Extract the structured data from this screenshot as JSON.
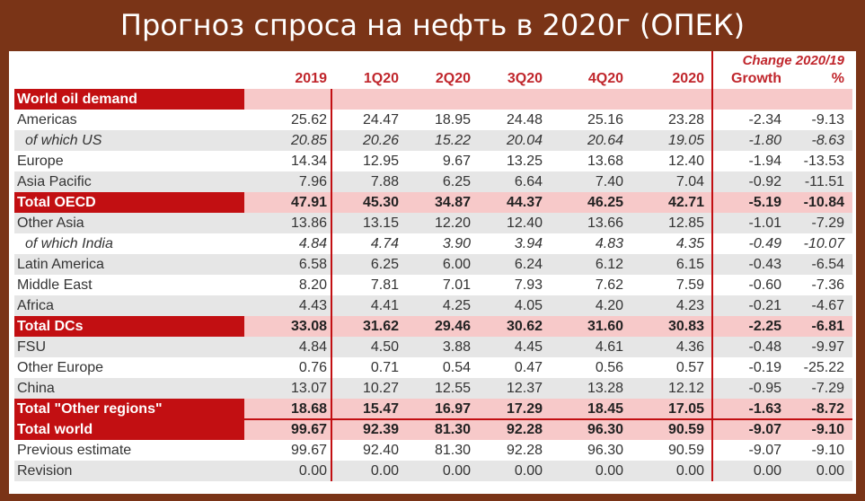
{
  "title": "Прогноз спроса на нефть в 2020г (ОПЕК)",
  "header": {
    "change_label": "Change 2020/19",
    "columns": [
      "2019",
      "1Q20",
      "2Q20",
      "3Q20",
      "4Q20",
      "2020",
      "Growth",
      "%"
    ]
  },
  "rows": [
    {
      "label": "World oil demand",
      "kind": "section",
      "values": []
    },
    {
      "label": "Americas",
      "kind": "normal",
      "values": [
        "25.62",
        "24.47",
        "18.95",
        "24.48",
        "25.16",
        "23.28",
        "-2.34",
        "-9.13"
      ]
    },
    {
      "label": "of which US",
      "kind": "italic",
      "values": [
        "20.85",
        "20.26",
        "15.22",
        "20.04",
        "20.64",
        "19.05",
        "-1.80",
        "-8.63"
      ]
    },
    {
      "label": "Europe",
      "kind": "normal",
      "values": [
        "14.34",
        "12.95",
        "9.67",
        "13.25",
        "13.68",
        "12.40",
        "-1.94",
        "-13.53"
      ]
    },
    {
      "label": "Asia Pacific",
      "kind": "normal",
      "values": [
        "7.96",
        "7.88",
        "6.25",
        "6.64",
        "7.40",
        "7.04",
        "-0.92",
        "-11.51"
      ]
    },
    {
      "label": "Total OECD",
      "kind": "total",
      "values": [
        "47.91",
        "45.30",
        "34.87",
        "44.37",
        "46.25",
        "42.71",
        "-5.19",
        "-10.84"
      ]
    },
    {
      "label": "Other Asia",
      "kind": "normal",
      "values": [
        "13.86",
        "13.15",
        "12.20",
        "12.40",
        "13.66",
        "12.85",
        "-1.01",
        "-7.29"
      ]
    },
    {
      "label": "of which India",
      "kind": "italic",
      "values": [
        "4.84",
        "4.74",
        "3.90",
        "3.94",
        "4.83",
        "4.35",
        "-0.49",
        "-10.07"
      ]
    },
    {
      "label": "Latin America",
      "kind": "normal",
      "values": [
        "6.58",
        "6.25",
        "6.00",
        "6.24",
        "6.12",
        "6.15",
        "-0.43",
        "-6.54"
      ]
    },
    {
      "label": "Middle East",
      "kind": "normal",
      "values": [
        "8.20",
        "7.81",
        "7.01",
        "7.93",
        "7.62",
        "7.59",
        "-0.60",
        "-7.36"
      ]
    },
    {
      "label": "Africa",
      "kind": "normal",
      "values": [
        "4.43",
        "4.41",
        "4.25",
        "4.05",
        "4.20",
        "4.23",
        "-0.21",
        "-4.67"
      ]
    },
    {
      "label": "Total DCs",
      "kind": "total",
      "values": [
        "33.08",
        "31.62",
        "29.46",
        "30.62",
        "31.60",
        "30.83",
        "-2.25",
        "-6.81"
      ]
    },
    {
      "label": "FSU",
      "kind": "normal",
      "values": [
        "4.84",
        "4.50",
        "3.88",
        "4.45",
        "4.61",
        "4.36",
        "-0.48",
        "-9.97"
      ]
    },
    {
      "label": "Other Europe",
      "kind": "normal",
      "values": [
        "0.76",
        "0.71",
        "0.54",
        "0.47",
        "0.56",
        "0.57",
        "-0.19",
        "-25.22"
      ]
    },
    {
      "label": "China",
      "kind": "normal",
      "values": [
        "13.07",
        "10.27",
        "12.55",
        "12.37",
        "13.28",
        "12.12",
        "-0.95",
        "-7.29"
      ]
    },
    {
      "label": "Total \"Other regions\"",
      "kind": "total",
      "values": [
        "18.68",
        "15.47",
        "16.97",
        "17.29",
        "18.45",
        "17.05",
        "-1.63",
        "-8.72"
      ]
    },
    {
      "label": "Total world",
      "kind": "total",
      "values": [
        "99.67",
        "92.39",
        "81.30",
        "92.28",
        "96.30",
        "90.59",
        "-9.07",
        "-9.10"
      ]
    },
    {
      "label": "Previous estimate",
      "kind": "normal",
      "values": [
        "99.67",
        "92.40",
        "81.30",
        "92.28",
        "96.30",
        "90.59",
        "-9.07",
        "-9.10"
      ]
    },
    {
      "label": "Revision",
      "kind": "normal",
      "values": [
        "0.00",
        "0.00",
        "0.00",
        "0.00",
        "0.00",
        "0.00",
        "0.00",
        "0.00"
      ]
    }
  ]
}
